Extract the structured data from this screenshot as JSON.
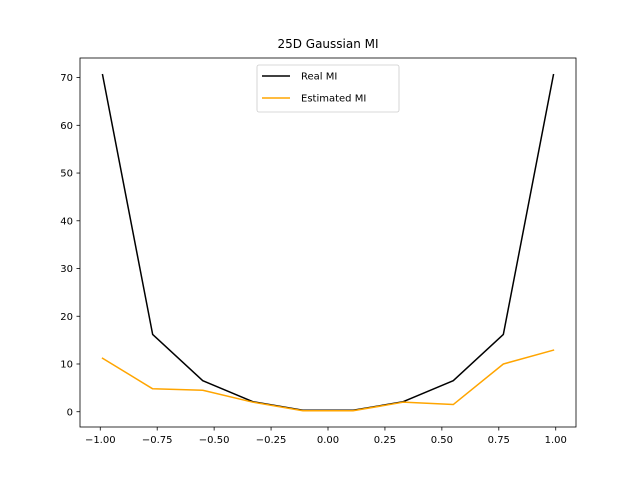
{
  "chart_data": {
    "type": "line",
    "title": "25D Gaussian MI",
    "xlabel": "",
    "ylabel": "",
    "x": [
      -0.99,
      -0.77,
      -0.55,
      -0.33,
      -0.11,
      0.11,
      0.33,
      0.55,
      0.77,
      0.99
    ],
    "series": [
      {
        "name": "Real MI",
        "color": "#000000",
        "values": [
          70.6,
          16.2,
          6.5,
          2.1,
          0.3,
          0.3,
          2.1,
          6.5,
          16.2,
          70.6
        ]
      },
      {
        "name": "Estimated MI",
        "color": "#ffa500",
        "values": [
          11.2,
          4.8,
          4.5,
          2.0,
          0.2,
          0.2,
          2.0,
          1.5,
          10.0,
          12.9
        ]
      }
    ],
    "xlim": [
      -1.089,
      1.089
    ],
    "ylim": [
      -3.2,
      74.1
    ],
    "xticks": [
      -1.0,
      -0.75,
      -0.5,
      -0.25,
      0.0,
      0.25,
      0.5,
      0.75,
      1.0
    ],
    "xtick_labels": [
      "−1.00",
      "−0.75",
      "−0.50",
      "−0.25",
      "0.00",
      "0.25",
      "0.50",
      "0.75",
      "1.00"
    ],
    "yticks": [
      0,
      10,
      20,
      30,
      40,
      50,
      60,
      70
    ],
    "ytick_labels": [
      "0",
      "10",
      "20",
      "30",
      "40",
      "50",
      "60",
      "70"
    ],
    "grid": false,
    "legend_position": "top-center"
  }
}
